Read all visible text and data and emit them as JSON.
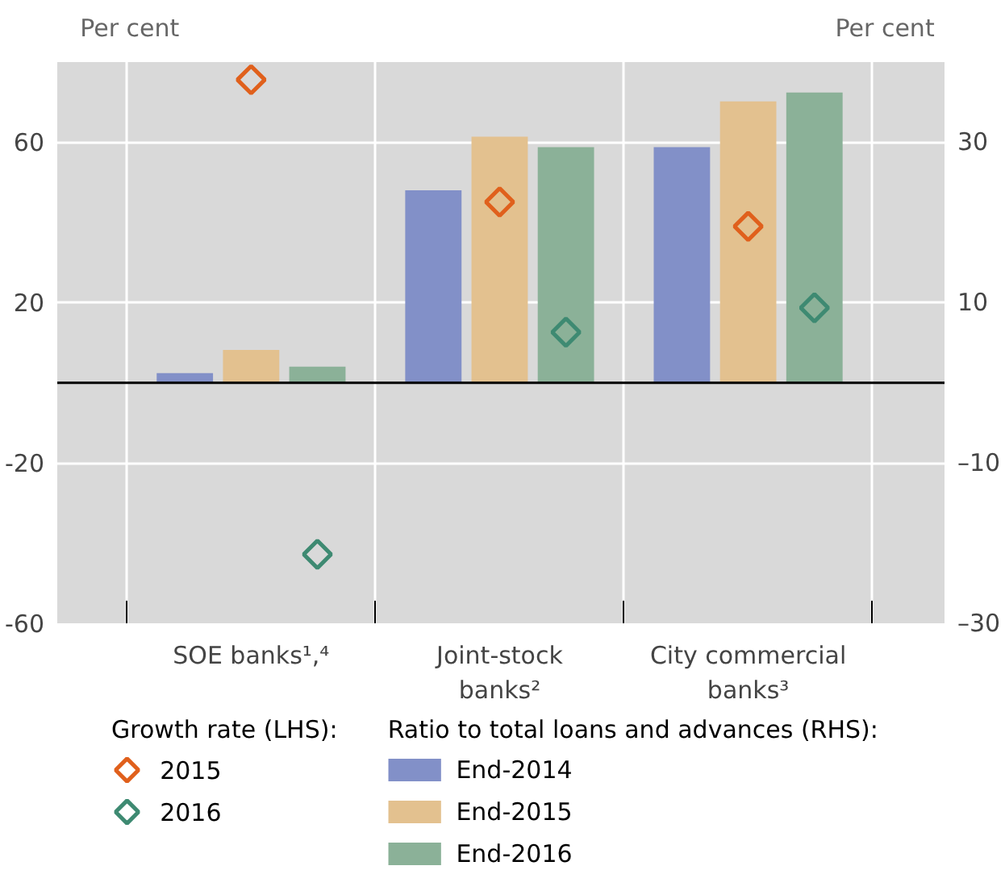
{
  "chart_data": {
    "type": "bar",
    "categories": [
      "SOE banks¹,⁴",
      "Joint-stock\nbanks²",
      "City commercial\nbanks³"
    ],
    "ylabel": "Per cent",
    "y2label": "Per cent",
    "legend_title": [
      "Growth rate (LHS):",
      "Ratio to total loans and advances (RHS):"
    ],
    "ylim": [
      -60,
      80
    ],
    "yticks": [
      -60,
      -20,
      20,
      60
    ],
    "y2lim": [
      -30,
      40
    ],
    "y2ticks": [
      {
        "value": -30,
        "label": "–30"
      },
      {
        "value": -10,
        "label": "–10"
      },
      10,
      30
    ],
    "series": [
      {
        "name": "2015",
        "type": "scatter",
        "marker": "diamond",
        "color": "#e0601c",
        "x": [
          "SOE banks¹,⁴",
          "Joint-stock\nbanks²",
          "City commercial\nbanks³"
        ],
        "values": [
          75.6,
          45.1,
          39.0
        ]
      },
      {
        "name": "2016",
        "type": "scatter",
        "marker": "diamond",
        "color": "#3e8a72",
        "x": [
          "SOE banks¹,⁴",
          "Joint-stock\nbanks²",
          "City commercial\nbanks³"
        ],
        "values": [
          -42.8,
          12.6,
          18.7
        ]
      },
      {
        "name": "End-2014",
        "axis": "y2",
        "color": "#8290c8",
        "values": [
          1.2,
          24.0,
          29.4
        ]
      },
      {
        "name": "End-2015",
        "axis": "y2",
        "color": "#e3c18f",
        "values": [
          4.1,
          30.7,
          35.1
        ]
      },
      {
        "name": "End-2016",
        "axis": "y2",
        "color": "#8bb198",
        "values": [
          2.0,
          29.4,
          36.2
        ]
      }
    ],
    "ref_lines": [
      {
        "axis": "y",
        "value": 0,
        "color": "#000000"
      }
    ],
    "grid": true,
    "legend": "bottom"
  }
}
